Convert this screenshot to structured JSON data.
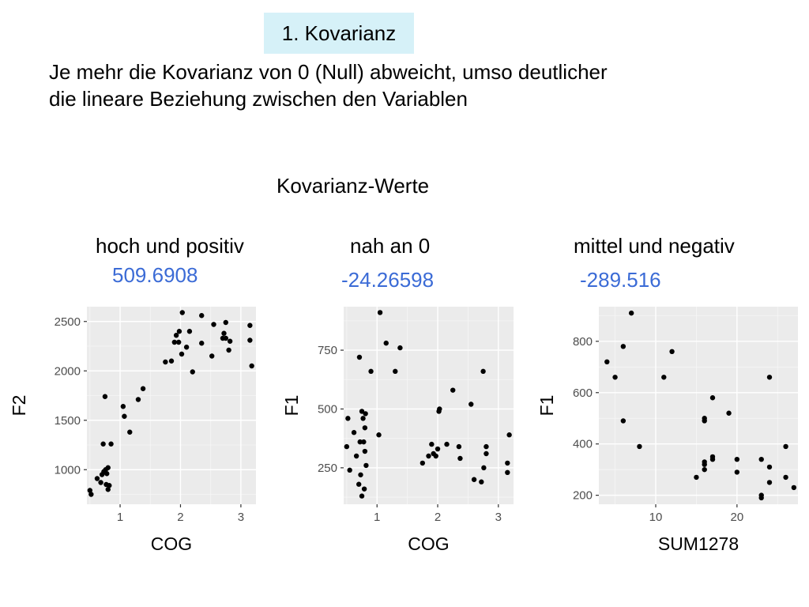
{
  "header": {
    "section_label": "1. Kovarianz",
    "intro_line1": "Je mehr die Kovarianz von 0 (Null) abweicht, umso deutlicher",
    "intro_line2": "die lineare Beziehung zwischen den Variablen",
    "subtitle": "Kovarianz-Werte"
  },
  "colors": {
    "value_text": "#3b6bd6",
    "panel": "#ebebeb",
    "points": "#000000"
  },
  "chart_data": [
    {
      "type": "scatter",
      "caption": "hoch und positiv",
      "covariance": "509.6908",
      "xlabel": "COG",
      "ylabel": "F2",
      "xlim": [
        0.45,
        3.25
      ],
      "ylim": [
        650,
        2650
      ],
      "xticks": [
        1,
        2,
        3
      ],
      "xtick_labels": [
        "1",
        "2",
        "3"
      ],
      "yticks": [
        1000,
        1500,
        2000,
        2500
      ],
      "ytick_labels": [
        "1000",
        "1500",
        "2000",
        "2500"
      ],
      "points": [
        [
          0.5,
          790
        ],
        [
          0.52,
          750
        ],
        [
          0.62,
          910
        ],
        [
          0.68,
          870
        ],
        [
          0.7,
          950
        ],
        [
          0.72,
          1260
        ],
        [
          0.73,
          980
        ],
        [
          0.75,
          1740
        ],
        [
          0.76,
          1000
        ],
        [
          0.77,
          850
        ],
        [
          0.78,
          960
        ],
        [
          0.8,
          1020
        ],
        [
          0.8,
          800
        ],
        [
          0.82,
          840
        ],
        [
          0.85,
          1260
        ],
        [
          1.05,
          1640
        ],
        [
          1.07,
          1540
        ],
        [
          1.16,
          1380
        ],
        [
          1.3,
          1710
        ],
        [
          1.38,
          1820
        ],
        [
          1.75,
          2090
        ],
        [
          1.85,
          2100
        ],
        [
          1.9,
          2290
        ],
        [
          1.93,
          2360
        ],
        [
          1.97,
          2290
        ],
        [
          1.98,
          2400
        ],
        [
          2.02,
          2170
        ],
        [
          2.03,
          2590
        ],
        [
          2.1,
          2240
        ],
        [
          2.15,
          2400
        ],
        [
          2.2,
          1990
        ],
        [
          2.35,
          2560
        ],
        [
          2.35,
          2280
        ],
        [
          2.52,
          2150
        ],
        [
          2.55,
          2470
        ],
        [
          2.7,
          2330
        ],
        [
          2.72,
          2380
        ],
        [
          2.75,
          2490
        ],
        [
          2.75,
          2330
        ],
        [
          2.8,
          2210
        ],
        [
          2.82,
          2300
        ],
        [
          3.15,
          2460
        ],
        [
          3.15,
          2310
        ],
        [
          3.18,
          2050
        ]
      ]
    },
    {
      "type": "scatter",
      "caption": "nah an 0",
      "covariance": "-24.26598",
      "xlabel": "COG",
      "ylabel": "F1",
      "xlim": [
        0.45,
        3.25
      ],
      "ylim": [
        95,
        935
      ],
      "xticks": [
        1,
        2,
        3
      ],
      "xtick_labels": [
        "1",
        "2",
        "3"
      ],
      "yticks": [
        250,
        500,
        750
      ],
      "ytick_labels": [
        "250",
        "500",
        "750"
      ],
      "points": [
        [
          0.5,
          340
        ],
        [
          0.52,
          460
        ],
        [
          0.55,
          240
        ],
        [
          0.62,
          400
        ],
        [
          0.66,
          300
        ],
        [
          0.7,
          180
        ],
        [
          0.71,
          720
        ],
        [
          0.72,
          360
        ],
        [
          0.73,
          220
        ],
        [
          0.75,
          490
        ],
        [
          0.75,
          130
        ],
        [
          0.77,
          460
        ],
        [
          0.78,
          360
        ],
        [
          0.79,
          160
        ],
        [
          0.8,
          420
        ],
        [
          0.8,
          320
        ],
        [
          0.81,
          480
        ],
        [
          0.82,
          260
        ],
        [
          0.9,
          660
        ],
        [
          1.03,
          390
        ],
        [
          1.05,
          910
        ],
        [
          1.15,
          780
        ],
        [
          1.3,
          660
        ],
        [
          1.38,
          760
        ],
        [
          1.75,
          270
        ],
        [
          1.85,
          300
        ],
        [
          1.9,
          350
        ],
        [
          1.93,
          310
        ],
        [
          1.97,
          300
        ],
        [
          2.0,
          330
        ],
        [
          2.02,
          490
        ],
        [
          2.03,
          500
        ],
        [
          2.15,
          350
        ],
        [
          2.25,
          580
        ],
        [
          2.35,
          340
        ],
        [
          2.37,
          290
        ],
        [
          2.55,
          520
        ],
        [
          2.6,
          200
        ],
        [
          2.72,
          190
        ],
        [
          2.75,
          660
        ],
        [
          2.76,
          250
        ],
        [
          2.8,
          340
        ],
        [
          2.8,
          310
        ],
        [
          3.15,
          270
        ],
        [
          3.15,
          230
        ],
        [
          3.18,
          390
        ]
      ]
    },
    {
      "type": "scatter",
      "caption": "mittel und negativ",
      "covariance": "-289.516",
      "xlabel": "SUM1278",
      "ylabel": "F1",
      "xlim": [
        3.0,
        27.5
      ],
      "ylim": [
        165,
        935
      ],
      "xticks": [
        10,
        20
      ],
      "xtick_labels": [
        "10",
        "20"
      ],
      "yticks": [
        200,
        400,
        600,
        800
      ],
      "ytick_labels": [
        "200",
        "400",
        "600",
        "800"
      ],
      "points": [
        [
          4,
          720
        ],
        [
          5,
          660
        ],
        [
          6,
          780
        ],
        [
          6,
          490
        ],
        [
          7,
          910
        ],
        [
          8,
          390
        ],
        [
          11,
          660
        ],
        [
          12,
          760
        ],
        [
          15,
          270
        ],
        [
          16,
          490
        ],
        [
          16,
          500
        ],
        [
          16,
          300
        ],
        [
          16,
          330
        ],
        [
          16,
          320
        ],
        [
          17,
          580
        ],
        [
          17,
          350
        ],
        [
          17,
          340
        ],
        [
          19,
          520
        ],
        [
          20,
          340
        ],
        [
          20,
          290
        ],
        [
          23,
          340
        ],
        [
          23,
          190
        ],
        [
          23,
          200
        ],
        [
          24,
          660
        ],
        [
          24,
          310
        ],
        [
          24,
          250
        ],
        [
          26,
          390
        ],
        [
          26,
          270
        ],
        [
          27,
          230
        ]
      ]
    }
  ]
}
